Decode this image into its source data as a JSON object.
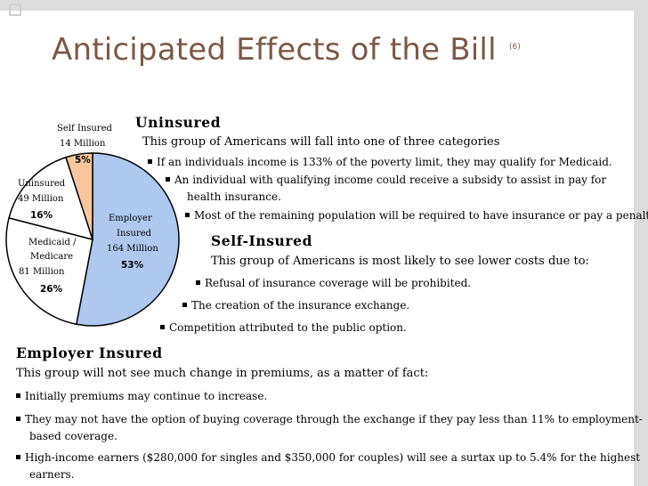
{
  "slide": {
    "title": "Anticipated Effects of the Bill",
    "title_note": "(6)"
  },
  "chart_data": {
    "type": "pie",
    "slices": [
      {
        "category": "Employer",
        "sub": "Insured",
        "millions_label": "164 Million",
        "millions": 164,
        "percent": 53,
        "percent_label": "53%",
        "color": "#aec8f0"
      },
      {
        "category": "Medicaid /",
        "sub": "Medicare",
        "millions_label": "81 Million",
        "millions": 81,
        "percent": 26,
        "percent_label": "26%",
        "color": "#ffffff"
      },
      {
        "category": "Uninsured",
        "sub": "",
        "millions_label": "49 Million",
        "millions": 49,
        "percent": 16,
        "percent_label": "16%",
        "color": "#ffffff"
      },
      {
        "category": "Self Insured",
        "sub": "",
        "millions_label": "14 Million",
        "millions": 14,
        "percent": 5,
        "percent_label": "5%",
        "color": "#f8c69c"
      }
    ]
  },
  "uninsured": {
    "heading": "Uninsured",
    "intro": "This group of Americans will fall into one of three categories",
    "b1": "If an individuals income is 133% of the poverty limit, they may qualify for Medicaid.",
    "b2": "An individual with qualifying income could receive a subsidy to assist in pay for",
    "b2_cont": "health insurance.",
    "b3": "Most of the remaining population will be required to have insurance or pay a penalty."
  },
  "self_insured": {
    "heading": "Self-Insured",
    "intro": "This group of Americans is most likely to see lower costs due to:",
    "b1": "Refusal of insurance coverage will be prohibited.",
    "b2": "The creation of the insurance exchange.",
    "b3": "Competition attributed to the public option."
  },
  "employer": {
    "heading": "Employer Insured",
    "intro": "This group will not see much change in premiums, as a matter of fact:",
    "b1": "Initially premiums may continue to increase.",
    "b2": "They may not have the option of buying coverage through the exchange if they pay less than 11% to employment-",
    "b2_cont": "based coverage.",
    "b3": "High-income earners ($280,000 for singles and $350,000 for couples) will see a surtax up to 5.4% for the highest",
    "b3_cont": "earners."
  }
}
